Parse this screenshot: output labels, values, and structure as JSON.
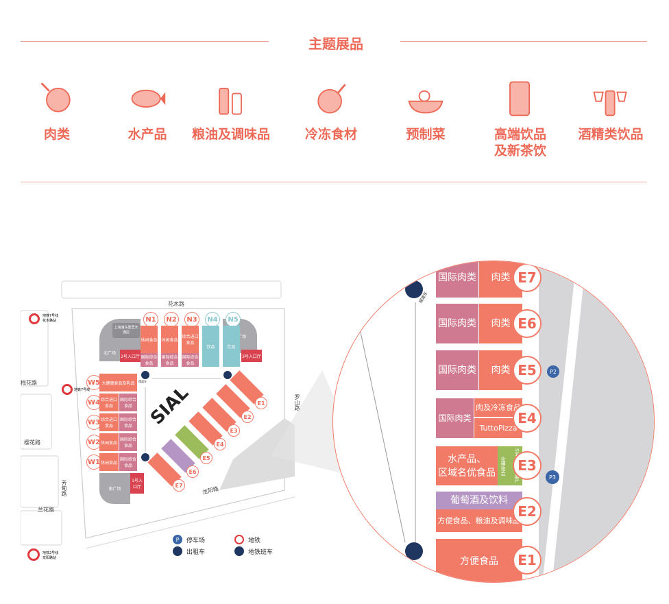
{
  "section_title": "主题展品",
  "categories": [
    {
      "label": "肉类",
      "icon": "meat-icon"
    },
    {
      "label": "水产品",
      "icon": "fish-icon"
    },
    {
      "label": "粮油及调味品",
      "icon": "condiment-bottles-icon"
    },
    {
      "label": "冷冻食材",
      "icon": "frozen-chicken-icon"
    },
    {
      "label": "预制菜",
      "icon": "prepared-dish-icon"
    },
    {
      "label": "高端饮品\n及新茶饮",
      "icon": "drink-can-icon"
    },
    {
      "label": "酒精类饮品",
      "icon": "wine-bottle-icon"
    }
  ],
  "map": {
    "roads": {
      "north": "花木路",
      "south": "龙阳路",
      "west1": "梅花路",
      "west2": "樱花路",
      "west3": "兰花路",
      "west_vertical": "芳甸路",
      "east": "罗山路"
    },
    "metro": {
      "north": "地铁7号线\n花木路站",
      "west": "地铁7号线",
      "south": "地铁2号线\n龙阳路站"
    },
    "halls_north": [
      {
        "id": "N1",
        "top": "休闲食品",
        "bottom": "国际综合食品"
      },
      {
        "id": "N2",
        "top": "休闲食品",
        "bottom": "国际综合食品"
      },
      {
        "id": "N3",
        "top": "综合进口食品",
        "bottom": "国际综合食品"
      },
      {
        "id": "N4",
        "top": "饮品",
        "bottom": ""
      },
      {
        "id": "N5",
        "top": "饮品",
        "bottom": ""
      }
    ],
    "halls_west": [
      {
        "id": "W5",
        "left": "大健康食品及乳品",
        "right": ""
      },
      {
        "id": "W4",
        "left": "综合进口食品",
        "right": "国际综合食品"
      },
      {
        "id": "W3",
        "left": "综合进口食品",
        "right": "国际综合食品"
      },
      {
        "id": "W2",
        "left": "休闲食品",
        "right": "国际综合食品"
      },
      {
        "id": "W1",
        "left": "休闲食品",
        "right": "国际综合食品"
      }
    ],
    "places": {
      "north_plaza": "北广场",
      "south_plaza": "南广场",
      "east_plaza": "东广场",
      "hotel": "上海浦东嘉里大酒店",
      "entrance1": "1号入口厅",
      "entrance2": "2号入口厅",
      "entrance3": "3号入口厅",
      "shuttle": "摆渡车"
    },
    "logo": "SIAL 西雅展",
    "legend": [
      {
        "label": "停车场",
        "icon": "parking-icon",
        "symbol": "P"
      },
      {
        "label": "地铁",
        "icon": "metro-icon",
        "symbol": ""
      },
      {
        "label": "出租车",
        "icon": "taxi-icon",
        "symbol": ""
      },
      {
        "label": "地铁班车",
        "icon": "shuttle-bus-icon",
        "symbol": ""
      }
    ]
  },
  "zoom": {
    "halls": [
      {
        "id": "E7",
        "left": "国际肉类",
        "right": "肉类"
      },
      {
        "id": "E6",
        "left": "国际肉类",
        "right": "肉类"
      },
      {
        "id": "E5",
        "left": "国际肉类",
        "right": "肉类"
      },
      {
        "id": "E4",
        "left": "国际肉类",
        "right_top": "肉及冷冻食品",
        "right_bottom": "TuttoPizza"
      },
      {
        "id": "E3",
        "left": "水产品、\n区域名优食品",
        "right": "SIAL世界食品产业博览会"
      },
      {
        "id": "E2",
        "top": "葡萄酒及饮料",
        "bottom": "方便食品、粮油及调味品"
      },
      {
        "id": "E1",
        "main": "方便食品"
      }
    ],
    "parking": [
      "P2",
      "P3"
    ],
    "shuttle": "摆渡车"
  },
  "colors": {
    "accent": "#ee6a58",
    "pink": "#cf7a90",
    "coral": "#f27b68",
    "purple": "#b495c3",
    "green": "#9cbb5a",
    "red": "#d94350",
    "teal": "#8ac8d0",
    "navy": "#1f3760"
  }
}
